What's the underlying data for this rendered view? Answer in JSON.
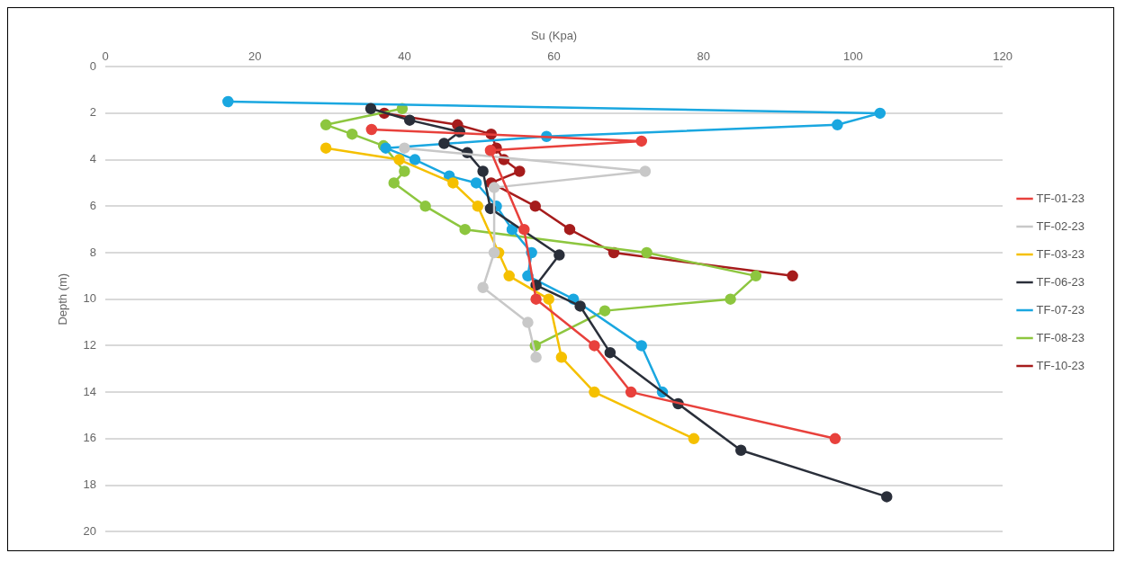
{
  "chart_data": {
    "type": "line",
    "xlabel": "Su (Kpa)",
    "ylabel": "Depth (m)",
    "xlim": [
      0,
      120
    ],
    "xticks": [
      0,
      20,
      40,
      60,
      80,
      100,
      120
    ],
    "ylim": [
      20,
      0
    ],
    "yticks": [
      0,
      2,
      4,
      6,
      8,
      10,
      12,
      14,
      16,
      18,
      20
    ],
    "grid": "y",
    "legend": "right",
    "marker": "circle",
    "line_style": "solid",
    "series": [
      {
        "name": "TF-01-23",
        "color": "#e8413c",
        "x": [
          35.6,
          71.7,
          51.5,
          56,
          57.6,
          65.4,
          70.3,
          97.6
        ],
        "values": [
          2.7,
          3.2,
          3.6,
          7,
          10,
          12,
          14,
          16
        ]
      },
      {
        "name": "TF-02-23",
        "color": "#c8c8c8",
        "x": [
          40,
          72.2,
          52,
          52,
          50.5,
          56.5,
          57.6
        ],
        "values": [
          3.5,
          4.5,
          5.2,
          8,
          9.5,
          11,
          12.5
        ]
      },
      {
        "name": "TF-03-23",
        "color": "#f5c000",
        "x": [
          29.5,
          39.3,
          46.5,
          49.8,
          52.6,
          54,
          59.3,
          61,
          65.4,
          78.7
        ],
        "values": [
          3.5,
          4,
          5,
          6,
          8,
          9,
          10,
          12.5,
          14,
          16
        ]
      },
      {
        "name": "TF-06-23",
        "color": "#2a2f3a",
        "x": [
          35.5,
          40.7,
          47.4,
          45.3,
          48.4,
          50.5,
          51.5,
          60.7,
          57.6,
          63.5,
          67.5,
          76.6,
          85,
          104.5
        ],
        "values": [
          1.8,
          2.3,
          2.8,
          3.3,
          3.7,
          4.5,
          6.1,
          8.1,
          9.4,
          10.3,
          12.3,
          14.5,
          16.5,
          18.5
        ]
      },
      {
        "name": "TF-07-23",
        "color": "#1aa7e0",
        "x": [
          16.4,
          103.6,
          97.9,
          59,
          37.5,
          41.4,
          46,
          49.6,
          52.3,
          54.4,
          57,
          56.5,
          62.6,
          71.7,
          74.5
        ],
        "values": [
          1.5,
          2,
          2.5,
          3,
          3.5,
          4,
          4.7,
          5,
          6,
          7,
          8,
          9,
          10,
          12,
          14
        ]
      },
      {
        "name": "TF-08-23",
        "color": "#8dc63f",
        "x": [
          39.7,
          29.5,
          33,
          37.2,
          40,
          38.6,
          42.8,
          48.1,
          72.4,
          87,
          83.6,
          66.8,
          57.5
        ],
        "values": [
          1.8,
          2.5,
          2.9,
          3.4,
          4.5,
          5,
          6,
          7,
          8,
          9,
          10,
          10.5,
          12
        ]
      },
      {
        "name": "TF-10-23",
        "color": "#a61c1c",
        "x": [
          37.3,
          47.1,
          51.6,
          52.3,
          53.3,
          55.4,
          51.6,
          57.5,
          62.1,
          68,
          91.9
        ],
        "values": [
          2,
          2.5,
          2.9,
          3.5,
          4,
          4.5,
          5,
          6,
          7,
          8,
          9
        ]
      }
    ]
  }
}
